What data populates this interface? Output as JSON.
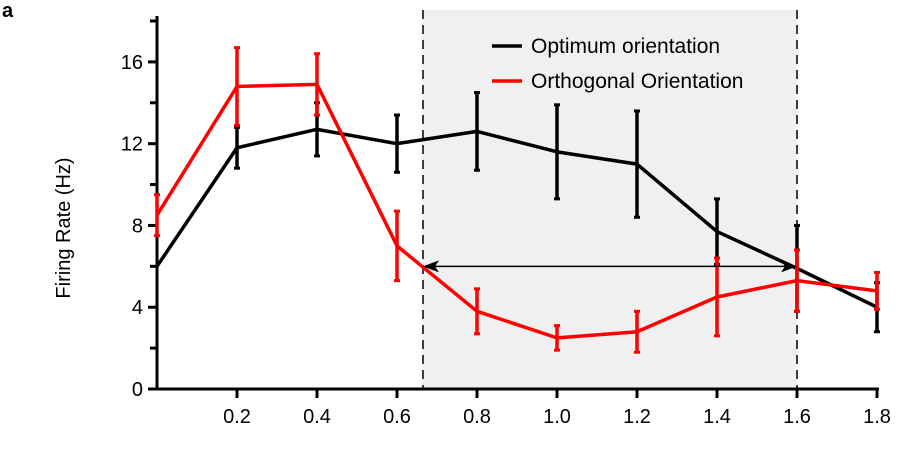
{
  "panel_label": "a",
  "chart_data": {
    "type": "line",
    "title": "",
    "xlabel": "",
    "ylabel": "Firing Rate (Hz)",
    "xlim": [
      0,
      1.8
    ],
    "ylim": [
      0,
      18
    ],
    "x_ticks": [
      {
        "value": 0.2,
        "label": "0.2"
      },
      {
        "value": 0.4,
        "label": "0.4"
      },
      {
        "value": 0.6,
        "label": "0.6"
      },
      {
        "value": 0.8,
        "label": "0.8"
      },
      {
        "value": 1.0,
        "label": "1.0"
      },
      {
        "value": 1.2,
        "label": "1.2"
      },
      {
        "value": 1.4,
        "label": "1.4"
      },
      {
        "value": 1.6,
        "label": "1.6"
      },
      {
        "value": 1.8,
        "label": "1.8"
      }
    ],
    "y_ticks": [
      {
        "value": 0,
        "label": "0"
      },
      {
        "value": 4,
        "label": "4"
      },
      {
        "value": 8,
        "label": "8"
      },
      {
        "value": 12,
        "label": "12"
      },
      {
        "value": 16,
        "label": "16"
      }
    ],
    "y_minor_ticks": [
      2,
      6,
      10,
      14,
      18
    ],
    "grid": false,
    "legend_position": "top-right",
    "shaded_region": {
      "x_start": 0.665,
      "x_end": 1.6,
      "color": "#f0f0f0"
    },
    "dashed_lines_x": [
      0.665,
      1.6
    ],
    "arrow": {
      "x_start": 0.665,
      "x_end": 1.6,
      "y": 6.0
    },
    "series": [
      {
        "name": "Optimum orientation",
        "color": "#000000",
        "x": [
          0.0,
          0.2,
          0.4,
          0.6,
          0.8,
          1.0,
          1.2,
          1.4,
          1.6,
          1.8
        ],
        "y": [
          6.0,
          11.8,
          12.7,
          12.0,
          12.6,
          11.6,
          11.0,
          7.7,
          5.9,
          4.0
        ],
        "err": [
          0.0,
          1.0,
          1.3,
          1.4,
          1.9,
          2.3,
          2.6,
          1.6,
          2.1,
          1.2
        ]
      },
      {
        "name": "Orthogonal Orientation",
        "color": "#ff0000",
        "x": [
          0.0,
          0.2,
          0.4,
          0.6,
          0.8,
          1.0,
          1.2,
          1.4,
          1.6,
          1.8
        ],
        "y": [
          8.5,
          14.8,
          14.9,
          7.0,
          3.8,
          2.5,
          2.8,
          4.5,
          5.3,
          4.8
        ],
        "err": [
          1.0,
          1.9,
          1.5,
          1.7,
          1.1,
          0.6,
          1.0,
          1.9,
          1.5,
          0.9
        ]
      }
    ]
  }
}
